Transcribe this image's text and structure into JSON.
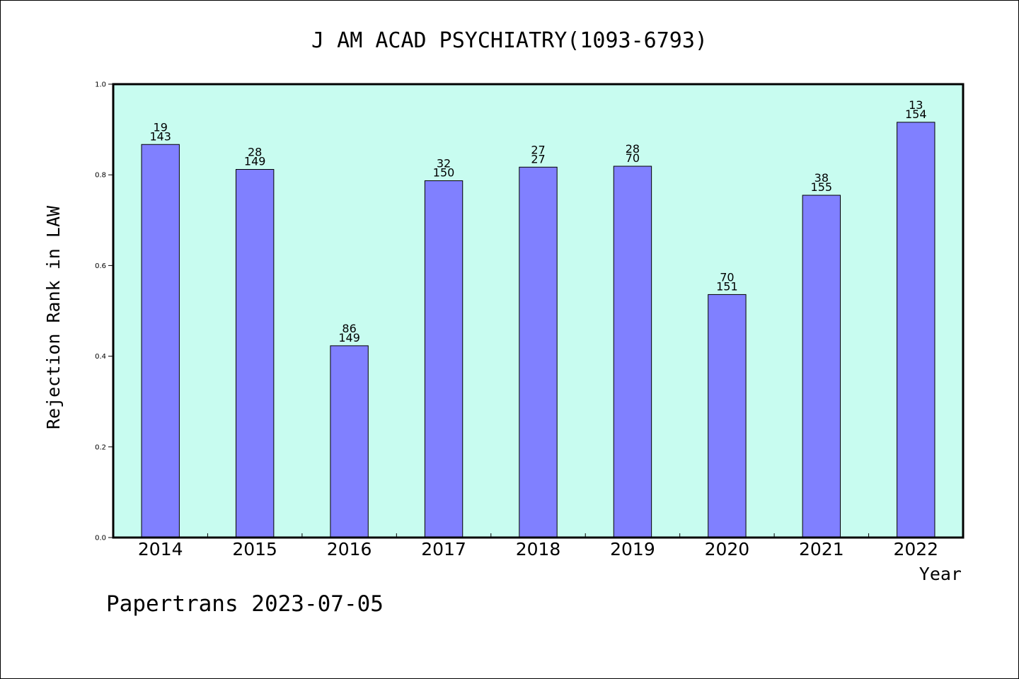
{
  "chart_data": {
    "type": "bar",
    "title": "J AM ACAD PSYCHIATRY(1093-6793)",
    "xlabel": "Year",
    "ylabel": "Rejection Rank in LAW",
    "ylim": [
      0,
      1.0
    ],
    "yticks": [
      "0.0",
      "0.2",
      "0.4",
      "0.6",
      "0.8",
      "1.0"
    ],
    "categories": [
      "2014",
      "2015",
      "2016",
      "2017",
      "2018",
      "2019",
      "2020",
      "2021",
      "2022"
    ],
    "values": [
      0.867,
      0.812,
      0.423,
      0.787,
      0.817,
      0.819,
      0.536,
      0.755,
      0.916
    ],
    "label_top": [
      "19",
      "28",
      "86",
      "32",
      "27",
      "28",
      "70",
      "38",
      "13"
    ],
    "label_bottom": [
      "143",
      "149",
      "149",
      "150",
      "27",
      "70",
      "151",
      "155",
      "154"
    ],
    "grid": false,
    "legend": "none",
    "colors": {
      "plot_background": "#c8fcf0",
      "bar_fill": "#8080ff",
      "bar_stroke": "#000000",
      "axis": "#000000"
    }
  },
  "footer": {
    "credit": "Papertrans 2023-07-05"
  }
}
